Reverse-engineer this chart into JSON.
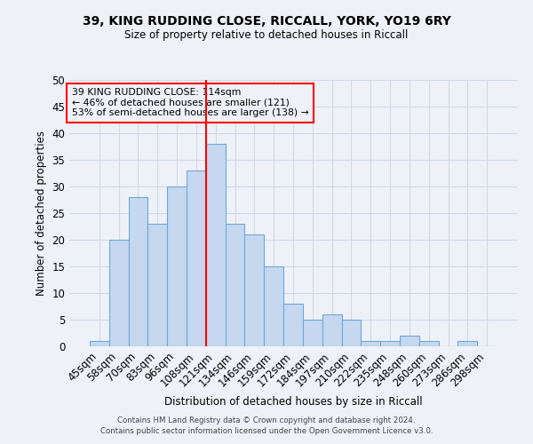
{
  "title1": "39, KING RUDDING CLOSE, RICCALL, YORK, YO19 6RY",
  "title2": "Size of property relative to detached houses in Riccall",
  "xlabel": "Distribution of detached houses by size in Riccall",
  "ylabel": "Number of detached properties",
  "categories": [
    "45sqm",
    "58sqm",
    "70sqm",
    "83sqm",
    "96sqm",
    "108sqm",
    "121sqm",
    "134sqm",
    "146sqm",
    "159sqm",
    "172sqm",
    "184sqm",
    "197sqm",
    "210sqm",
    "222sqm",
    "235sqm",
    "248sqm",
    "260sqm",
    "273sqm",
    "286sqm",
    "298sqm"
  ],
  "values": [
    1,
    20,
    28,
    23,
    30,
    33,
    38,
    23,
    21,
    15,
    8,
    5,
    6,
    5,
    1,
    1,
    2,
    1,
    0,
    1,
    0
  ],
  "bar_color": "#c5d8f0",
  "bar_edge_color": "#6fa8d6",
  "grid_color": "#d0d8e8",
  "background_color": "#eef2f8",
  "ref_line_x": 5.5,
  "annotation_text": "39 KING RUDDING CLOSE: 114sqm\n← 46% of detached houses are smaller (121)\n53% of semi-detached houses are larger (138) →",
  "ylim": [
    0,
    50
  ],
  "yticks": [
    0,
    5,
    10,
    15,
    20,
    25,
    30,
    35,
    40,
    45,
    50
  ],
  "footnote1": "Contains HM Land Registry data © Crown copyright and database right 2024.",
  "footnote2": "Contains public sector information licensed under the Open Government Licence v3.0."
}
